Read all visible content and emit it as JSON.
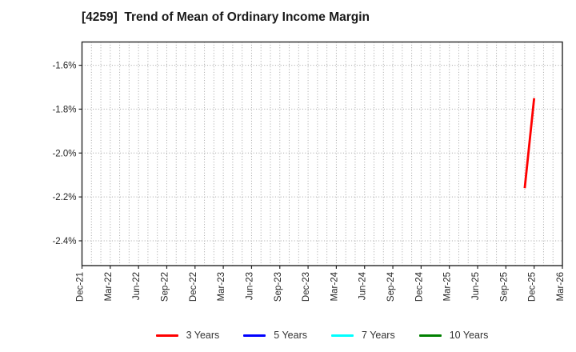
{
  "title": "[4259]  Trend of Mean of Ordinary Income Margin",
  "chart_data": {
    "type": "line",
    "title": "[4259]  Trend of Mean of Ordinary Income Margin",
    "xlabel": "",
    "ylabel": "",
    "x_tick_labels": [
      "Dec-21",
      "Mar-22",
      "Jun-22",
      "Sep-22",
      "Dec-22",
      "Mar-23",
      "Jun-23",
      "Sep-23",
      "Dec-23",
      "Mar-24",
      "Jun-24",
      "Sep-24",
      "Dec-24",
      "Mar-25",
      "Jun-25",
      "Sep-25",
      "Dec-25",
      "Mar-26"
    ],
    "x_tick_step": 3,
    "x_month_count": 51,
    "y_ticks": [
      -1.6,
      -1.8,
      -2.0,
      -2.2,
      -2.4
    ],
    "y_tick_labels": [
      "-1.6%",
      "-1.8%",
      "-2.0%",
      "-2.2%",
      "-2.4%"
    ],
    "ylim": [
      -2.513,
      -1.494
    ],
    "grid": "dotted",
    "legend_position": "bottom center",
    "colors": {
      "background": "#ffffff",
      "grid": "#a3a3a3",
      "axis": "#262626",
      "tick_label": "#262626"
    },
    "series": [
      {
        "name": "3 Years",
        "color": "#ff0000",
        "points": [
          {
            "x_label": "Nov-25",
            "month_index": 47,
            "value": -2.16
          },
          {
            "x_label": "Dec-25",
            "month_index": 48,
            "value": -1.75
          }
        ]
      },
      {
        "name": "5 Years",
        "color": "#0000ff",
        "points": []
      },
      {
        "name": "7 Years",
        "color": "#00ffff",
        "points": []
      },
      {
        "name": "10 Years",
        "color": "#008000",
        "points": []
      }
    ]
  }
}
